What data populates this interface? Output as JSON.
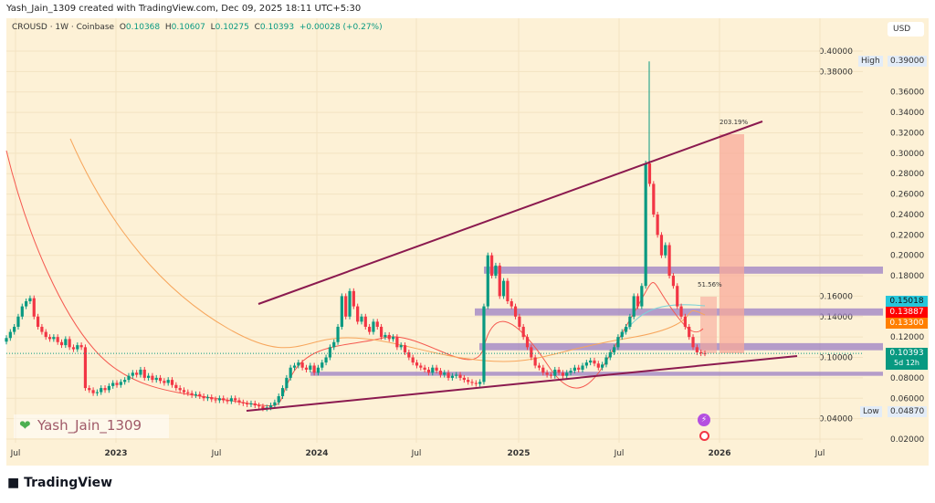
{
  "credit": "Yash_Jain_1309 created with TradingView.com, Dec 09, 2025 18:11 UTC+5:30",
  "header": {
    "symbol": "CROUSD · 1W · Coinbase",
    "o_label": "O",
    "o": "0.10368",
    "h_label": "H",
    "h": "0.10607",
    "l_label": "L",
    "l": "0.10275",
    "c_label": "C",
    "c": "0.10393",
    "change": "+0.00028 (+0.27%)"
  },
  "currency": "USD",
  "watermark": "Yash_Jain_1309",
  "brand": "TradingView",
  "tags": {
    "high_label": "High",
    "high": "0.39000",
    "low_label": "Low",
    "low": "0.04870",
    "cyan": "0.15018",
    "red": "0.13887",
    "orange": "0.13300",
    "last": "0.10393",
    "countdown": "5d 12h"
  },
  "colors": {
    "bg": "#fdf1d6",
    "up": "#089981",
    "down": "#f23645",
    "zone": "#9b7fc4",
    "trend": "#8b1a4f",
    "target": "#f8a99a"
  },
  "chart_data": {
    "type": "candlestick",
    "interval": "1W",
    "ylim": [
      0.02,
      0.4
    ],
    "y_ticks": [
      "0.02000",
      "0.04000",
      "0.06000",
      "0.08000",
      "0.10000",
      "0.12000",
      "0.14000",
      "0.16000",
      "0.18000",
      "0.20000",
      "0.22000",
      "0.24000",
      "0.26000",
      "0.28000",
      "0.30000",
      "0.32000",
      "0.34000",
      "0.36000",
      "0.38000",
      "0.40000"
    ],
    "x_ticks": [
      "Jul",
      "2023",
      "Jul",
      "2024",
      "Jul",
      "2025",
      "Jul",
      "2026",
      "Jul"
    ],
    "closes": [
      0.119,
      0.125,
      0.13,
      0.14,
      0.15,
      0.155,
      0.158,
      0.14,
      0.13,
      0.125,
      0.12,
      0.118,
      0.12,
      0.115,
      0.112,
      0.118,
      0.11,
      0.108,
      0.112,
      0.11,
      0.07,
      0.068,
      0.065,
      0.066,
      0.07,
      0.068,
      0.072,
      0.075,
      0.073,
      0.076,
      0.078,
      0.082,
      0.085,
      0.083,
      0.088,
      0.08,
      0.082,
      0.078,
      0.08,
      0.077,
      0.075,
      0.078,
      0.073,
      0.07,
      0.068,
      0.066,
      0.065,
      0.063,
      0.064,
      0.062,
      0.06,
      0.061,
      0.059,
      0.058,
      0.06,
      0.058,
      0.057,
      0.06,
      0.058,
      0.056,
      0.055,
      0.054,
      0.055,
      0.053,
      0.052,
      0.05,
      0.051,
      0.053,
      0.056,
      0.062,
      0.07,
      0.08,
      0.09,
      0.092,
      0.095,
      0.09,
      0.088,
      0.092,
      0.085,
      0.09,
      0.095,
      0.1,
      0.11,
      0.115,
      0.13,
      0.16,
      0.14,
      0.165,
      0.15,
      0.135,
      0.14,
      0.13,
      0.125,
      0.135,
      0.13,
      0.12,
      0.122,
      0.118,
      0.12,
      0.11,
      0.112,
      0.105,
      0.1,
      0.095,
      0.092,
      0.09,
      0.088,
      0.085,
      0.09,
      0.087,
      0.083,
      0.085,
      0.08,
      0.082,
      0.083,
      0.08,
      0.078,
      0.076,
      0.075,
      0.074,
      0.076,
      0.15,
      0.2,
      0.18,
      0.19,
      0.16,
      0.175,
      0.155,
      0.15,
      0.14,
      0.13,
      0.12,
      0.11,
      0.1,
      0.092,
      0.09,
      0.085,
      0.083,
      0.082,
      0.088,
      0.085,
      0.082,
      0.085,
      0.087,
      0.09,
      0.088,
      0.092,
      0.095,
      0.097,
      0.094,
      0.09,
      0.093,
      0.1,
      0.105,
      0.11,
      0.12,
      0.125,
      0.13,
      0.14,
      0.16,
      0.15,
      0.17,
      0.29,
      0.27,
      0.24,
      0.22,
      0.2,
      0.21,
      0.18,
      0.17,
      0.15,
      0.14,
      0.13,
      0.12,
      0.11,
      0.105,
      0.104,
      0.10393
    ],
    "annotations": {
      "target_pct": "203.19%",
      "small_pct": "51.56%"
    },
    "zones": [
      [
        0.182,
        0.189
      ],
      [
        0.141,
        0.148
      ],
      [
        0.107,
        0.114
      ],
      [
        0.082,
        0.086
      ]
    ]
  }
}
